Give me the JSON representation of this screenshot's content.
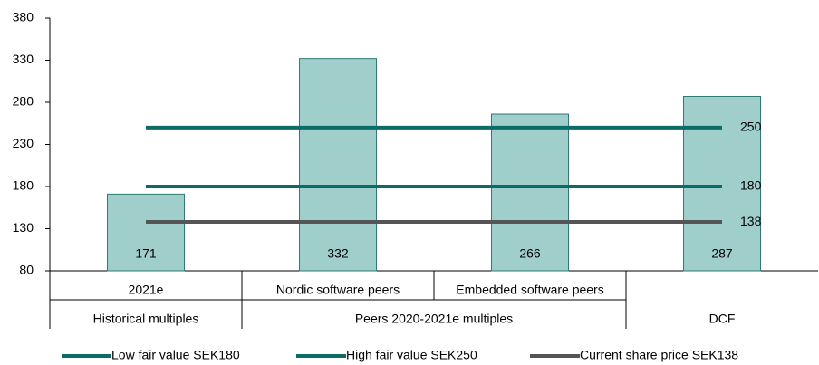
{
  "chart_data": {
    "type": "bar",
    "categories": [
      "2021e",
      "Nordic software peers",
      "Embedded software peers",
      null
    ],
    "category_groups": [
      {
        "name": "Historical multiples",
        "count": 1
      },
      {
        "name": "Peers 2020-2021e multiples",
        "count": 2
      },
      {
        "name": "DCF",
        "count": 1
      }
    ],
    "values": [
      171,
      332,
      266,
      287
    ],
    "color": "#a0cfcb",
    "edge_color": "#2e7b73",
    "ylim": [
      80,
      380
    ],
    "yticks": [
      80,
      130,
      180,
      230,
      280,
      330,
      380
    ],
    "reference_lines": [
      {
        "name": "Low fair value SEK180",
        "color": "#0b6b66",
        "value": 180
      },
      {
        "name": "High fair value SEK250",
        "color": "#0b6b66",
        "value": 250
      },
      {
        "name": "Current share price SEK138",
        "color": "#555555",
        "value": 138
      }
    ]
  }
}
